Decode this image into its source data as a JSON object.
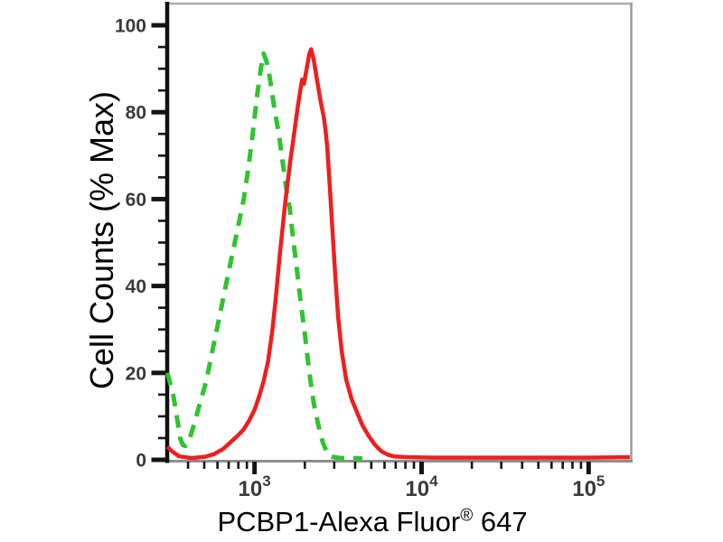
{
  "chart_data": {
    "type": "line",
    "chart_kind": "flow-cytometry-histogram-overlay",
    "title": "",
    "xlabel": "PCBP1-Alexa Fluor® 647",
    "xlabel_parts": {
      "main": "PCBP1-Alexa Fluor",
      "sup": "®",
      "suffix": " 647"
    },
    "ylabel": "Cell Counts (% Max)",
    "x_scale": "log",
    "x_range": [
      300,
      180000
    ],
    "y_range": [
      0,
      100
    ],
    "grid": false,
    "legend": "none",
    "y_ticks": {
      "major": [
        0,
        20,
        40,
        60,
        80,
        100
      ],
      "minor_step": 5
    },
    "x_ticks": {
      "major": [
        {
          "value": 1000,
          "base": "10",
          "exp": "3"
        },
        {
          "value": 10000,
          "base": "10",
          "exp": "4"
        },
        {
          "value": 100000,
          "base": "10",
          "exp": "5"
        }
      ],
      "minor": [
        400,
        500,
        600,
        700,
        800,
        900,
        2000,
        3000,
        4000,
        5000,
        6000,
        7000,
        8000,
        9000,
        20000,
        30000,
        40000,
        50000,
        60000,
        70000,
        80000,
        90000
      ]
    },
    "series": [
      {
        "name": "green-dashed",
        "color": "#2fc42f",
        "line_style": "dashed",
        "stroke_width": 5,
        "points": [
          [
            301,
            20
          ],
          [
            313,
            17.5
          ],
          [
            324,
            15.5
          ],
          [
            336,
            12
          ],
          [
            349,
            8
          ],
          [
            358,
            5
          ],
          [
            372,
            3.4
          ],
          [
            386,
            3.2
          ],
          [
            405,
            4.5
          ],
          [
            426,
            7
          ],
          [
            448,
            10
          ],
          [
            475,
            13.5
          ],
          [
            513,
            18
          ],
          [
            552,
            24
          ],
          [
            602,
            31
          ],
          [
            656,
            38
          ],
          [
            706,
            44
          ],
          [
            762,
            50
          ],
          [
            811,
            55
          ],
          [
            862,
            60
          ],
          [
            917,
            67
          ],
          [
            975,
            75
          ],
          [
            1038,
            84
          ],
          [
            1091,
            90
          ],
          [
            1132,
            93.5
          ],
          [
            1174,
            92
          ],
          [
            1234,
            88
          ],
          [
            1313,
            81
          ],
          [
            1397,
            75
          ],
          [
            1469,
            69
          ],
          [
            1542,
            63
          ],
          [
            1622,
            58
          ],
          [
            1702,
            51
          ],
          [
            1790,
            44
          ],
          [
            1879,
            37
          ],
          [
            2000,
            29
          ],
          [
            2128,
            20
          ],
          [
            2264,
            13
          ],
          [
            2409,
            8
          ],
          [
            2564,
            4
          ],
          [
            2724,
            1.5
          ],
          [
            2898,
            0.7
          ],
          [
            3243,
            0.4
          ],
          [
            3672,
            0.4
          ],
          [
            4150,
            0.35
          ],
          [
            4416,
            0.3
          ]
        ]
      },
      {
        "name": "red-solid",
        "color": "#ee1f1f",
        "line_style": "solid",
        "stroke_width": 4.5,
        "points": [
          [
            301,
            3
          ],
          [
            320,
            2
          ],
          [
            353,
            0.8
          ],
          [
            421,
            0.4
          ],
          [
            506,
            0.7
          ],
          [
            573,
            1.3
          ],
          [
            649,
            2.5
          ],
          [
            716,
            4
          ],
          [
            791,
            5.5
          ],
          [
            862,
            7
          ],
          [
            928,
            9
          ],
          [
            1000,
            11.5
          ],
          [
            1064,
            14.5
          ],
          [
            1132,
            18
          ],
          [
            1204,
            22.5
          ],
          [
            1281,
            30
          ],
          [
            1346,
            38
          ],
          [
            1415,
            47
          ],
          [
            1469,
            53
          ],
          [
            1524,
            59
          ],
          [
            1581,
            64
          ],
          [
            1641,
            69
          ],
          [
            1725,
            75
          ],
          [
            1811,
            81
          ],
          [
            1879,
            85
          ],
          [
            1927,
            87.5
          ],
          [
            1976,
            86.5
          ],
          [
            2050,
            90
          ],
          [
            2128,
            93.5
          ],
          [
            2182,
            94.5
          ],
          [
            2264,
            92
          ],
          [
            2377,
            87
          ],
          [
            2500,
            82
          ],
          [
            2594,
            79
          ],
          [
            2659,
            76
          ],
          [
            2724,
            72
          ],
          [
            2831,
            62
          ],
          [
            2936,
            52
          ],
          [
            3048,
            42
          ],
          [
            3162,
            33
          ],
          [
            3324,
            25
          ],
          [
            3533,
            18.5
          ],
          [
            3811,
            14
          ],
          [
            4101,
            11
          ],
          [
            4416,
            8
          ],
          [
            4819,
            5.5
          ],
          [
            5248,
            3.5
          ],
          [
            5728,
            2
          ],
          [
            6252,
            1.2
          ],
          [
            6808,
            0.8
          ],
          [
            8204,
            0.6
          ],
          [
            11900,
            0.5
          ],
          [
            19500,
            0.5
          ],
          [
            32000,
            0.5
          ],
          [
            52500,
            0.5
          ],
          [
            97500,
            0.5
          ],
          [
            176500,
            0.6
          ]
        ]
      }
    ],
    "colors": {
      "axis_left": "#101010",
      "axis_bottom": "#8e8e8e",
      "border_top": "#aeaeae",
      "border_right": "#9c9c9c",
      "tick": "#141414",
      "tick_label": "#3a3a3a",
      "title_text": "#000000"
    }
  }
}
